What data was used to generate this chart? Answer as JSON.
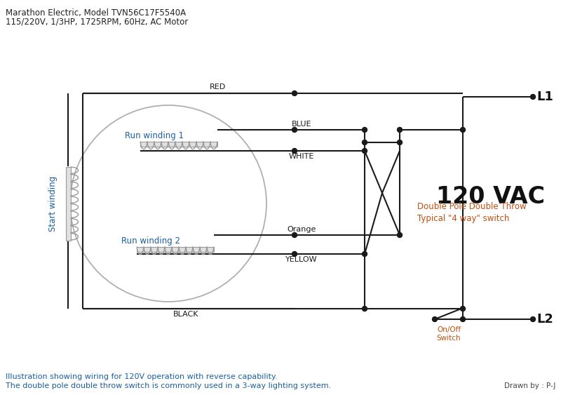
{
  "title_line1": "Marathon Electric, Model TVN56C17F5540A",
  "title_line2": "115/220V, 1/3HP, 1725RPM, 60Hz, AC Motor",
  "footer_line1": "Illustration showing wiring for 120V operation with reverse capability.",
  "footer_line2": "The double pole double throw switch is commonly used in a 3-way lighting system.",
  "footer_right": "Drawn by : P-J",
  "voltage_label": "120 VAC",
  "L1_label": "L1",
  "L2_label": "L2",
  "dpdt_label1": "Double Pole Double Throw",
  "dpdt_label2": "Typical \"4 way\" switch",
  "onoff_label1": "On/Off",
  "onoff_label2": "Switch",
  "run_winding1_label": "Run winding 1",
  "run_winding2_label": "Run winding 2",
  "start_winding_label": "Start winding",
  "bg_color": "#ffffff",
  "wire_color": "#1a1a1a",
  "blue_text_color": "#1a5fa0",
  "orange_text_color": "#c05010",
  "coil_fill": "#e0e0e0",
  "coil_stroke": "#999999",
  "circle_color": "#b0b0b0",
  "dot_color": "#1a1a1a",
  "label_color": "#1a1a1a"
}
